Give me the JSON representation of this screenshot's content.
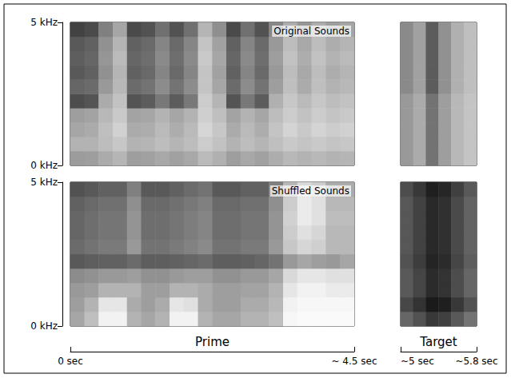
{
  "chart_data": {
    "type": "heatmap",
    "zlim": [
      0,
      1
    ],
    "ylim": [
      0,
      5
    ],
    "yticks": [
      {
        "value": 0,
        "label": "0 kHz"
      },
      {
        "value": 5,
        "label": "5 kHz"
      }
    ],
    "sections": [
      {
        "label": "Prime",
        "xlim": [
          0,
          4.5
        ],
        "xticks": [
          {
            "value": 0,
            "label": "0 sec"
          },
          {
            "value": 4.5,
            "label": "~ 4.5 sec"
          }
        ]
      },
      {
        "label": "Target",
        "xlim": [
          5,
          5.8
        ],
        "xticks": [
          {
            "value": 5,
            "label": "~5 sec"
          },
          {
            "value": 5.8,
            "label": "~5.8 sec"
          }
        ]
      }
    ],
    "rows": [
      {
        "title": "Original Sounds",
        "cells": [
          [
            [
              0.39,
              0.38,
              0.33,
              0.29,
              0.38,
              0.37,
              0.34,
              0.37,
              0.34,
              0.27,
              0.31,
              0.38,
              0.34,
              0.37,
              0.32,
              0.28,
              0.3,
              0.28,
              0.3,
              0.29
            ],
            [
              0.3,
              0.3,
              0.26,
              0.22,
              0.3,
              0.29,
              0.26,
              0.29,
              0.26,
              0.2,
              0.24,
              0.3,
              0.26,
              0.29,
              0.25,
              0.21,
              0.23,
              0.21,
              0.23,
              0.22
            ],
            [
              0.35,
              0.33,
              0.25,
              0.18,
              0.33,
              0.32,
              0.27,
              0.32,
              0.27,
              0.16,
              0.22,
              0.33,
              0.27,
              0.32,
              0.23,
              0.17,
              0.21,
              0.17,
              0.2,
              0.18
            ],
            [
              0.38,
              0.36,
              0.28,
              0.21,
              0.36,
              0.35,
              0.3,
              0.35,
              0.3,
              0.19,
              0.25,
              0.36,
              0.3,
              0.35,
              0.26,
              0.2,
              0.24,
              0.2,
              0.23,
              0.21
            ],
            [
              0.7,
              0.67,
              0.33,
              0.24,
              0.67,
              0.64,
              0.53,
              0.64,
              0.53,
              0.2,
              0.29,
              0.67,
              0.53,
              0.64,
              0.31,
              0.22,
              0.27,
              0.22,
              0.26,
              0.24
            ],
            [
              0.6,
              0.58,
              0.4,
              0.28,
              0.58,
              0.55,
              0.45,
              0.55,
              0.45,
              0.23,
              0.35,
              0.58,
              0.45,
              0.55,
              0.38,
              0.25,
              0.33,
              0.25,
              0.3,
              0.28
            ],
            [
              0.65,
              0.62,
              0.43,
              0.29,
              0.62,
              0.59,
              0.48,
              0.59,
              0.48,
              0.23,
              0.37,
              0.62,
              0.48,
              0.59,
              0.4,
              0.26,
              0.34,
              0.26,
              0.32,
              0.29
            ],
            [
              0.63,
              0.6,
              0.41,
              0.27,
              0.6,
              0.57,
              0.46,
              0.57,
              0.46,
              0.21,
              0.35,
              0.6,
              0.46,
              0.57,
              0.38,
              0.24,
              0.32,
              0.24,
              0.3,
              0.27
            ],
            [
              0.65,
              0.62,
              0.43,
              0.29,
              0.62,
              0.59,
              0.48,
              0.59,
              0.48,
              0.23,
              0.37,
              0.62,
              0.48,
              0.59,
              0.4,
              0.26,
              0.34,
              0.26,
              0.32,
              0.29
            ],
            [
              0.74,
              0.71,
              0.5,
              0.35,
              0.71,
              0.68,
              0.56,
              0.68,
              0.56,
              0.29,
              0.44,
              0.71,
              0.56,
              0.68,
              0.47,
              0.32,
              0.41,
              0.32,
              0.38,
              0.35
            ]
          ],
          [
            [
              0.4,
              0.33,
              0.55,
              0.38,
              0.28,
              0.23
            ],
            [
              0.4,
              0.33,
              0.55,
              0.38,
              0.28,
              0.23
            ],
            [
              0.4,
              0.33,
              0.55,
              0.38,
              0.28,
              0.23
            ],
            [
              0.4,
              0.33,
              0.55,
              0.38,
              0.28,
              0.23
            ],
            [
              0.4,
              0.33,
              0.55,
              0.38,
              0.28,
              0.23
            ],
            [
              0.46,
              0.37,
              0.64,
              0.43,
              0.31,
              0.25
            ],
            [
              0.46,
              0.37,
              0.64,
              0.43,
              0.31,
              0.25
            ],
            [
              0.46,
              0.37,
              0.64,
              0.43,
              0.31,
              0.25
            ],
            [
              0.46,
              0.37,
              0.64,
              0.43,
              0.31,
              0.25
            ],
            [
              0.46,
              0.37,
              0.64,
              0.43,
              0.31,
              0.25
            ]
          ]
        ]
      },
      {
        "title": "Shuffled Sounds",
        "cells": [
          [
            [
              0.35,
              0.25,
              0.05,
              0.05,
              0.3,
              0.35,
              0.3,
              0.05,
              0.05,
              0.3,
              0.35,
              0.35,
              0.3,
              0.3,
              0.25,
              0.03,
              0.02,
              0.02,
              0.02,
              0.02
            ],
            [
              0.38,
              0.3,
              0.1,
              0.1,
              0.33,
              0.38,
              0.33,
              0.1,
              0.12,
              0.33,
              0.38,
              0.38,
              0.33,
              0.33,
              0.28,
              0.05,
              0.03,
              0.03,
              0.03,
              0.03
            ],
            [
              0.4,
              0.38,
              0.3,
              0.3,
              0.3,
              0.38,
              0.38,
              0.3,
              0.3,
              0.33,
              0.38,
              0.38,
              0.36,
              0.36,
              0.3,
              0.1,
              0.05,
              0.05,
              0.08,
              0.08
            ],
            [
              0.45,
              0.43,
              0.4,
              0.4,
              0.38,
              0.43,
              0.43,
              0.4,
              0.38,
              0.38,
              0.43,
              0.43,
              0.4,
              0.4,
              0.35,
              0.15,
              0.1,
              0.1,
              0.12,
              0.12
            ],
            [
              0.65,
              0.63,
              0.62,
              0.62,
              0.58,
              0.63,
              0.63,
              0.62,
              0.6,
              0.58,
              0.63,
              0.63,
              0.62,
              0.6,
              0.55,
              0.4,
              0.35,
              0.38,
              0.4,
              0.35
            ],
            [
              0.58,
              0.55,
              0.52,
              0.52,
              0.4,
              0.55,
              0.55,
              0.52,
              0.49,
              0.46,
              0.55,
              0.55,
              0.52,
              0.52,
              0.4,
              0.22,
              0.16,
              0.19,
              0.28,
              0.28
            ],
            [
              0.6,
              0.57,
              0.54,
              0.54,
              0.42,
              0.57,
              0.57,
              0.54,
              0.51,
              0.48,
              0.57,
              0.57,
              0.54,
              0.54,
              0.42,
              0.2,
              0.12,
              0.16,
              0.28,
              0.28
            ],
            [
              0.6,
              0.57,
              0.54,
              0.54,
              0.42,
              0.57,
              0.57,
              0.54,
              0.51,
              0.48,
              0.57,
              0.57,
              0.54,
              0.54,
              0.42,
              0.18,
              0.08,
              0.12,
              0.26,
              0.26
            ],
            [
              0.62,
              0.59,
              0.56,
              0.56,
              0.44,
              0.59,
              0.59,
              0.56,
              0.53,
              0.5,
              0.59,
              0.59,
              0.56,
              0.56,
              0.44,
              0.2,
              0.08,
              0.12,
              0.28,
              0.28
            ],
            [
              0.68,
              0.65,
              0.62,
              0.62,
              0.5,
              0.65,
              0.65,
              0.62,
              0.58,
              0.55,
              0.65,
              0.65,
              0.62,
              0.62,
              0.5,
              0.28,
              0.15,
              0.2,
              0.33,
              0.33
            ]
          ],
          [
            [
              0.6,
              0.68,
              0.78,
              0.75,
              0.65,
              0.55
            ],
            [
              0.72,
              0.8,
              0.9,
              0.88,
              0.78,
              0.68
            ],
            [
              0.65,
              0.73,
              0.83,
              0.8,
              0.7,
              0.6
            ],
            [
              0.65,
              0.73,
              0.83,
              0.8,
              0.7,
              0.6
            ],
            [
              0.68,
              0.76,
              0.86,
              0.83,
              0.73,
              0.63
            ],
            [
              0.66,
              0.74,
              0.84,
              0.81,
              0.71,
              0.61
            ],
            [
              0.66,
              0.74,
              0.84,
              0.81,
              0.71,
              0.61
            ],
            [
              0.66,
              0.74,
              0.84,
              0.81,
              0.71,
              0.61
            ],
            [
              0.66,
              0.74,
              0.84,
              0.81,
              0.71,
              0.61
            ],
            [
              0.7,
              0.78,
              0.88,
              0.85,
              0.75,
              0.65
            ]
          ]
        ]
      }
    ]
  }
}
